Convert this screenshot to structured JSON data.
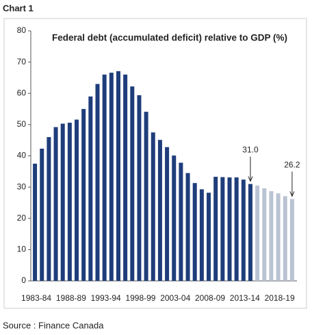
{
  "header": "Chart 1",
  "source": "Source : Finance Canada",
  "chart_data": {
    "type": "bar",
    "title": "Federal debt (accumulated deficit) relative to GDP (%)",
    "categories": [
      "1983-84",
      null,
      null,
      null,
      null,
      "1988-89",
      null,
      null,
      null,
      null,
      "1993-94",
      null,
      null,
      null,
      null,
      "1998-99",
      null,
      null,
      null,
      null,
      "2003-04",
      null,
      null,
      null,
      null,
      "2008-09",
      null,
      null,
      null,
      null,
      "2013-14",
      null,
      null,
      null,
      null,
      "2018-19",
      null,
      null
    ],
    "values": [
      37.5,
      42.3,
      46,
      49.2,
      50.3,
      50.6,
      51.6,
      55,
      59,
      63,
      66,
      66.6,
      67.1,
      66,
      62.2,
      59.4,
      54.1,
      47.5,
      45.1,
      42.8,
      40.1,
      37.8,
      34.5,
      31.3,
      29.3,
      28.2,
      33.3,
      33.2,
      33.1,
      33.1,
      32.4,
      31.0,
      30.5,
      29.6,
      28.7,
      28.0,
      27.1,
      26.2
    ],
    "value_labels": [
      null,
      null,
      null,
      null,
      null,
      null,
      null,
      null,
      null,
      null,
      null,
      null,
      null,
      null,
      null,
      null,
      null,
      null,
      null,
      null,
      null,
      null,
      null,
      null,
      null,
      null,
      null,
      null,
      null,
      null,
      null,
      "31.0",
      null,
      null,
      null,
      null,
      null,
      "26.2"
    ],
    "colors": [
      "#1f3d7a",
      "#1f3d7a",
      "#1f3d7a",
      "#1f3d7a",
      "#1f3d7a",
      "#1f3d7a",
      "#1f3d7a",
      "#1f3d7a",
      "#1f3d7a",
      "#1f3d7a",
      "#1f3d7a",
      "#1f3d7a",
      "#1f3d7a",
      "#1f3d7a",
      "#1f3d7a",
      "#1f3d7a",
      "#1f3d7a",
      "#1f3d7a",
      "#1f3d7a",
      "#1f3d7a",
      "#1f3d7a",
      "#1f3d7a",
      "#1f3d7a",
      "#1f3d7a",
      "#1f3d7a",
      "#1f3d7a",
      "#1f3d7a",
      "#1f3d7a",
      "#1f3d7a",
      "#1f3d7a",
      "#1f3d7a",
      "#1f3d7a",
      "#b9c3d3",
      "#b9c3d3",
      "#b9c3d3",
      "#b9c3d3",
      "#b9c3d3",
      "#b9c3d3"
    ],
    "ylim": [
      0,
      80
    ],
    "yticks": [
      0,
      10,
      20,
      30,
      40,
      50,
      60,
      70,
      80
    ],
    "grid": false
  }
}
